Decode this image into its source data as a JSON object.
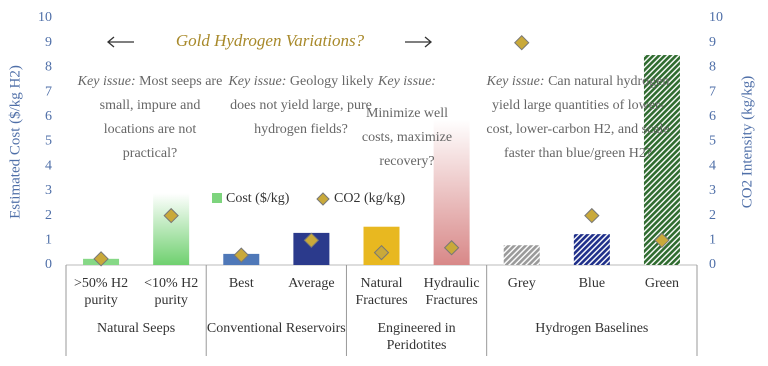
{
  "chart_data": {
    "type": "bar",
    "title": "Gold Hydrogen Variations?",
    "y_label": "Estimated Cost ($/kg H2)",
    "y2_label": "CO2 Intensity (kg/kg)",
    "categories": [
      ">50% H2 purity",
      "<10% H2 purity",
      "Best",
      "Average",
      "Natural Fractures",
      "Hydraulic Fractures",
      "Grey",
      "Blue",
      "Green"
    ],
    "groups": [
      {
        "name": "Natural Seeps",
        "span": 2
      },
      {
        "name": "Conventional Reservoirs",
        "span": 2
      },
      {
        "name": "Engineered in Peridotites",
        "span": 2
      },
      {
        "name": "Hydrogen Baselines",
        "span": 3
      }
    ],
    "series": [
      {
        "name": "Cost ($/kg)",
        "color": "#7dd47d",
        "values": [
          0.25,
          2.9,
          0.45,
          1.3,
          1.55,
          5.9,
          0.8,
          1.25,
          8.5
        ],
        "bar_colors": [
          "#86d886",
          "#6fd06f",
          "#4f78b8",
          "#2b3a8c",
          "#e8b820",
          "#d88888",
          "#9a9a9a",
          "#1f2f8a",
          "#2f6b2f"
        ],
        "bar_styles": [
          "solid",
          "fade",
          "solid",
          "solid",
          "solid",
          "fade",
          "hatch",
          "hatch",
          "hatch"
        ]
      },
      {
        "name": "CO2 (kg/kg)",
        "color": "#c9a93a",
        "axis": "y2",
        "values": [
          0.25,
          2.0,
          0.4,
          1.0,
          0.5,
          0.7,
          9.0,
          2.0,
          1.0
        ]
      }
    ],
    "annotations": [
      {
        "label": "Key issue:",
        "text": "Most seeps are small, impure and locations are not practical?"
      },
      {
        "label": "Key issue:",
        "text": "Geology likely does not yield large, pure hydrogen fields?"
      },
      {
        "label": "Key issue:",
        "text": "Minimize well costs, maximize recovery?"
      },
      {
        "label": "Key issue:",
        "text": "Can natural hydrogen yield large quantities of lower-cost, lower-carbon H2, and scale faster than blue/green H2?"
      }
    ],
    "ylim": [
      0,
      10
    ],
    "yticks": [
      0,
      1,
      2,
      3,
      4,
      5,
      6,
      7,
      8,
      9,
      10
    ],
    "y2lim": [
      0,
      10
    ],
    "y2ticks": [
      0,
      1,
      2,
      3,
      4,
      5,
      6,
      7,
      8,
      9,
      10
    ]
  }
}
